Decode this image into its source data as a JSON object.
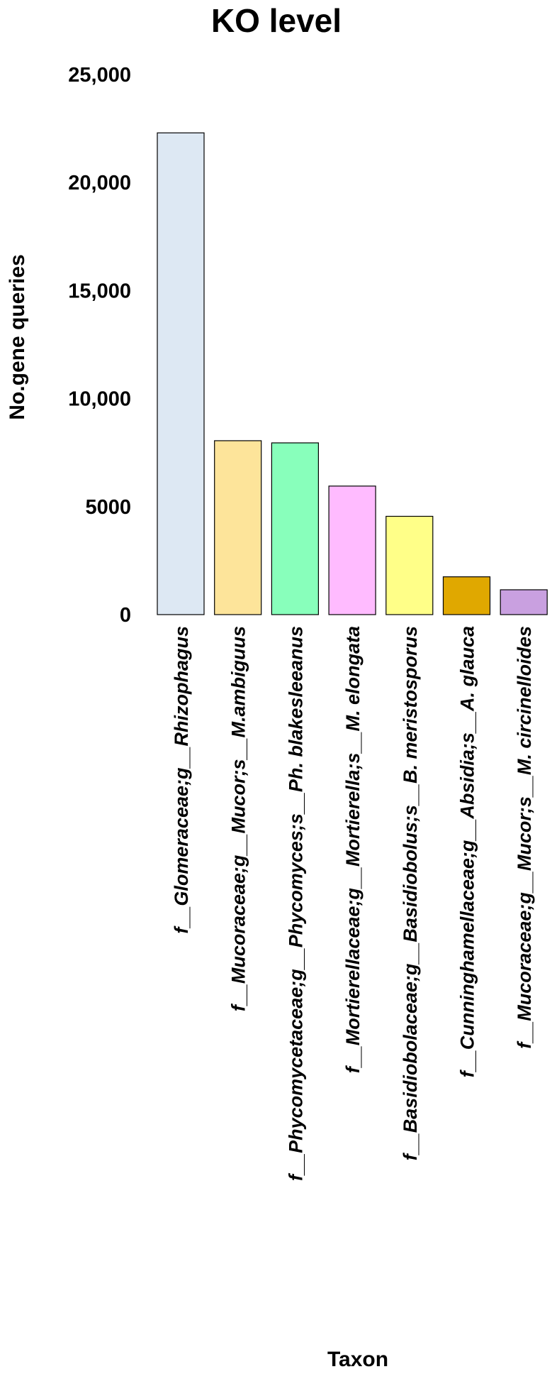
{
  "chart_data": {
    "type": "bar",
    "title": "KO level",
    "xlabel": "Taxon",
    "ylabel": "No.gene queries",
    "ylim": [
      0,
      25000
    ],
    "yticks": [
      0,
      5000,
      10000,
      15000,
      20000,
      25000
    ],
    "ytick_labels": [
      "0",
      "5000",
      "10,000",
      "15,000",
      "20,000",
      "25,000"
    ],
    "grid": false,
    "categories": [
      "f__Glomeraceae;g__Rhizophagus",
      "f__Mucoraceae;g__Mucor;s__M.ambiguus",
      "f__Phycomycetaceae;g__Phycomyces;s__Ph. blakesleeanus",
      "f__Mortierellaceae;g__Mortierella;s__M. elongata",
      "f__Basidiobolaceae;g__Basidiobolus;s__B. meristosporus",
      "f__Cunninghamellaceae;g__Absidia;s__A. glauca",
      "f__Mucoraceae;g__Mucor;s__M. circinelloides"
    ],
    "values": [
      22300,
      8050,
      7950,
      5950,
      4550,
      1750,
      1150
    ],
    "colors": [
      "#DDE8F3",
      "#FDE49A",
      "#88FFBB",
      "#FFBBFF",
      "#FFFF88",
      "#E0A800",
      "#C9A0E0"
    ]
  }
}
